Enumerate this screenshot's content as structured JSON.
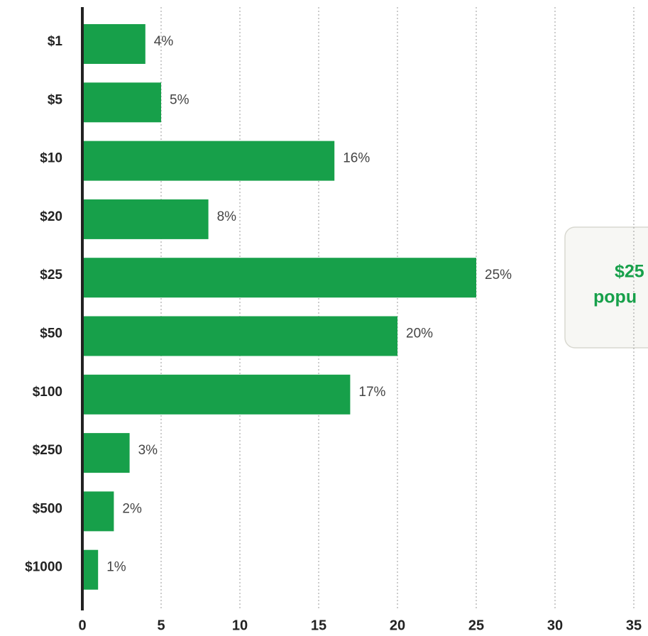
{
  "chart_data": {
    "type": "barh",
    "categories": [
      "$1",
      "$5",
      "$10",
      "$20",
      "$25",
      "$50",
      "$100",
      "$250",
      "$500",
      "$1000"
    ],
    "values": [
      4,
      5,
      16,
      8,
      25,
      20,
      17,
      3,
      2,
      1
    ],
    "value_labels": [
      "4%",
      "5%",
      "16%",
      "8%",
      "25%",
      "20%",
      "17%",
      "3%",
      "2%",
      "1%"
    ],
    "color": "#17a04a",
    "xlim": [
      0,
      35
    ],
    "xticks": [
      0,
      5,
      10,
      15,
      20,
      25,
      30,
      35
    ],
    "grid": true,
    "annotation": [
      "$25",
      "popu"
    ]
  }
}
